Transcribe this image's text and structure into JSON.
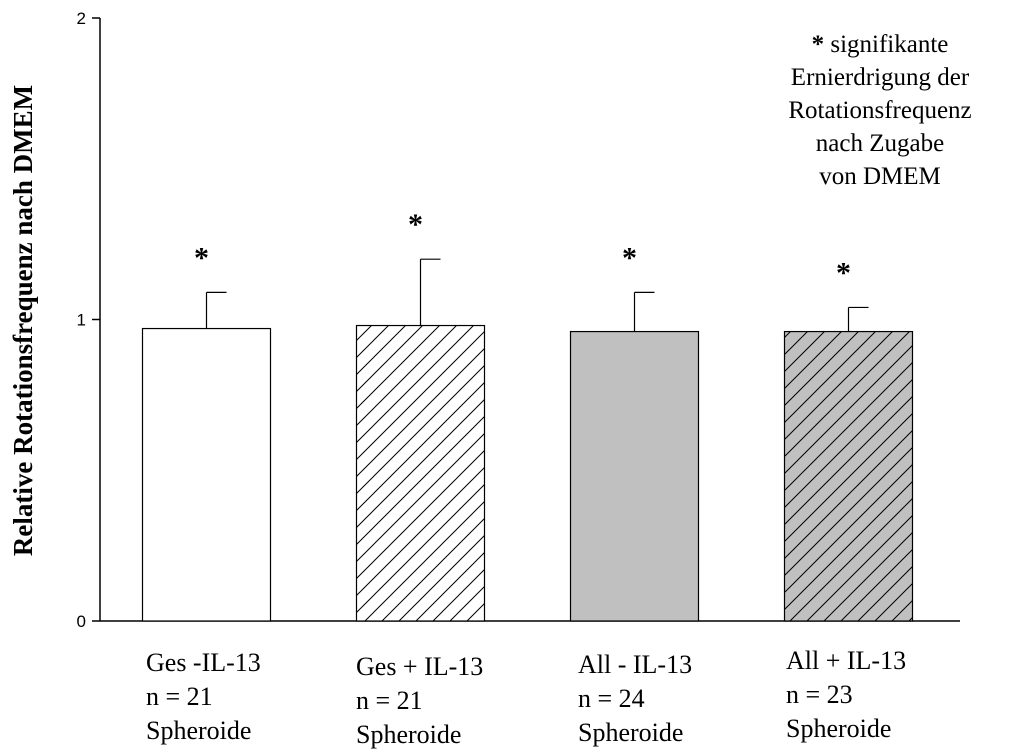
{
  "chart_data": {
    "type": "bar",
    "ylabel": "Relative Rotationsfrequenz nach DMEM",
    "xlabel": "",
    "ylim": [
      0,
      2
    ],
    "yticks": [
      "0",
      "1",
      "2"
    ],
    "categories": [
      {
        "line1": "Ges -IL-13",
        "line2": "n = 21",
        "line3": "Spheroide"
      },
      {
        "line1": "Ges + IL-13",
        "line2": "n = 21",
        "line3": "Spheroide"
      },
      {
        "line1": "All - IL-13",
        "line2": "n = 24",
        "line3": "Spheroide"
      },
      {
        "line1": "All + IL-13",
        "line2": "n = 23",
        "line3": "Spheroide"
      }
    ],
    "values": [
      0.97,
      0.98,
      0.96,
      0.96
    ],
    "errors": [
      0.12,
      0.22,
      0.13,
      0.08
    ],
    "significance_marks": [
      "*",
      "*",
      "*",
      "*"
    ],
    "bar_fills": [
      "white",
      "hatched-white",
      "gray",
      "hatched-gray"
    ],
    "gray_color": "#c0c0c0",
    "annotation": {
      "star": "*",
      "line1": "signifikante",
      "line2": "Ernierdrigung der",
      "line3": "Rotationsfrequenz",
      "line4": "nach Zugabe",
      "line5": "von DMEM"
    },
    "grid": false
  }
}
